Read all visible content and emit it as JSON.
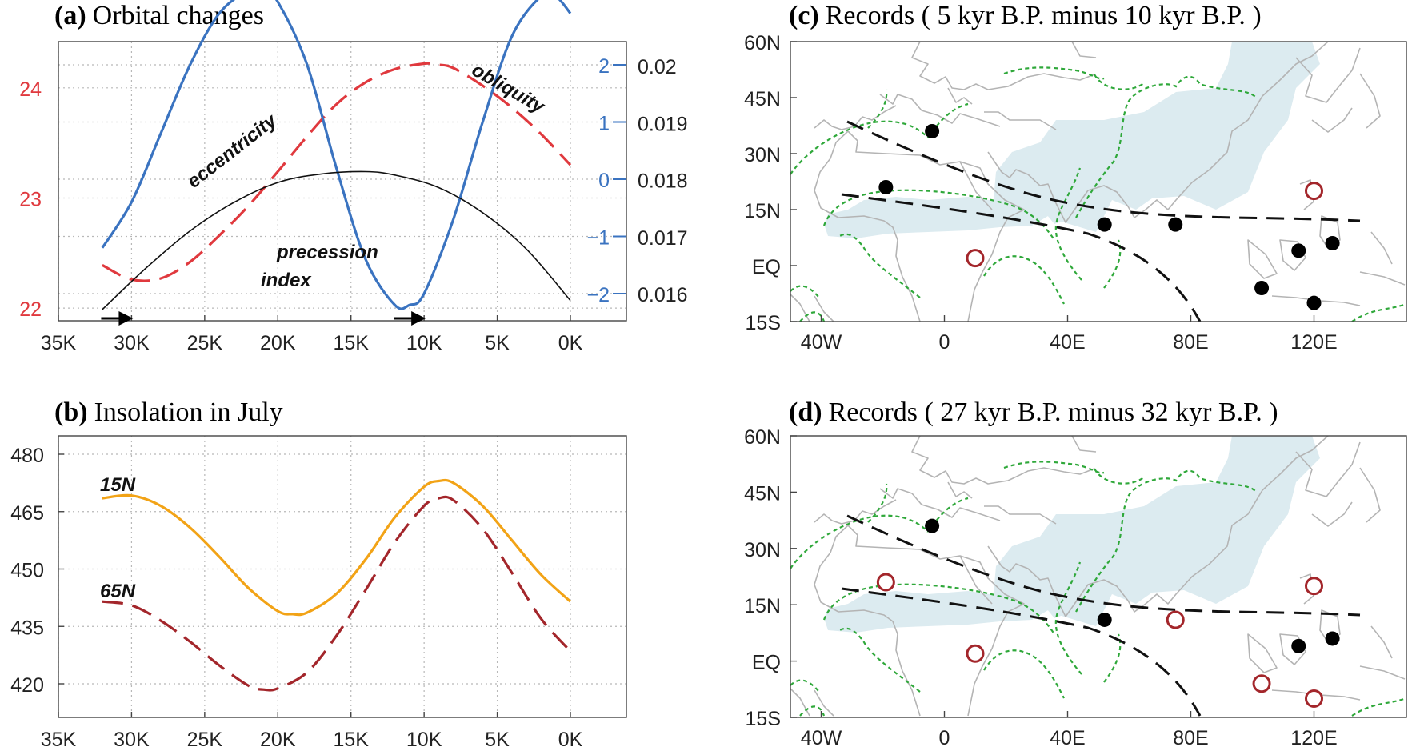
{
  "chart_data": [
    {
      "panel": "a",
      "type": "line",
      "title_letter": "(a)",
      "title": "Orbital changes",
      "x_ticks": [
        "35K",
        "30K",
        "25K",
        "20K",
        "15K",
        "10K",
        "5K",
        "0K"
      ],
      "x_ticks_values": [
        35,
        30,
        25,
        20,
        15,
        10,
        5,
        0
      ],
      "xlim": [
        35,
        0
      ],
      "left_axis": {
        "ticks": [
          "24",
          "23",
          "22"
        ],
        "ticks_values": [
          24,
          23,
          22
        ],
        "ylim": [
          21.95,
          24.5
        ],
        "color": "#e0393e"
      },
      "right_axis_precession": {
        "ticks": [
          "−2",
          "−1",
          "0",
          "1",
          "2"
        ],
        "ticks_values": [
          -2,
          -1,
          0,
          1,
          2
        ],
        "color": "#3a73c0"
      },
      "right_axis_eccentricity": {
        "ticks": [
          "0.02",
          "0.019",
          "0.018",
          "0.017",
          "0.016"
        ],
        "ticks_values": [
          0.02,
          0.019,
          0.018,
          0.017,
          0.016
        ],
        "ylim": [
          0.0153,
          0.0212
        ]
      },
      "arrow_markers_x": [
        30,
        10
      ],
      "series": [
        {
          "name": "obliquity",
          "axis": "left",
          "color": "#e0393e",
          "style": "dashed",
          "x": [
            32,
            30,
            28,
            26,
            24,
            22,
            20,
            18,
            16,
            14,
            12,
            10,
            9,
            8,
            6,
            4,
            2,
            0
          ],
          "y": [
            22.39,
            22.26,
            22.27,
            22.42,
            22.66,
            22.93,
            23.24,
            23.56,
            23.85,
            24.05,
            24.17,
            24.22,
            24.21,
            24.18,
            24.02,
            23.82,
            23.58,
            23.3
          ]
        },
        {
          "name": "precession index",
          "axis": "right_precession",
          "color": "#3a73c0",
          "style": "solid",
          "x": [
            32,
            30,
            28,
            26,
            24,
            22,
            21,
            20,
            18,
            16,
            14,
            12,
            11,
            10,
            8,
            6,
            4,
            2,
            1,
            0
          ],
          "y": [
            -1.2,
            -0.4,
            0.8,
            2.0,
            2.9,
            3.3,
            3.3,
            3.1,
            2.0,
            0.2,
            -1.4,
            -2.2,
            -2.2,
            -2.0,
            -0.7,
            1.0,
            2.5,
            3.2,
            3.2,
            2.9
          ]
        },
        {
          "name": "eccentricity",
          "axis": "right_eccentricity",
          "color": "#111111",
          "style": "solid",
          "x": [
            32,
            29,
            26,
            23,
            20,
            17,
            14,
            12,
            9,
            6,
            3,
            0
          ],
          "y": [
            0.01572,
            0.01645,
            0.0171,
            0.0176,
            0.01795,
            0.0181,
            0.01814,
            0.01808,
            0.01786,
            0.01742,
            0.01678,
            0.01588
          ]
        }
      ],
      "annotations": [
        "obliquity",
        "eccentricity",
        "precession",
        "index"
      ],
      "grid": true
    },
    {
      "panel": "b",
      "type": "line",
      "title_letter": "(b)",
      "title": "Insolation in July",
      "x_ticks": [
        "35K",
        "30K",
        "25K",
        "20K",
        "15K",
        "10K",
        "5K",
        "0K"
      ],
      "x_ticks_values": [
        35,
        30,
        25,
        20,
        15,
        10,
        5,
        0
      ],
      "xlim": [
        35,
        0
      ],
      "y_ticks": [
        "480",
        "465",
        "450",
        "435",
        "420"
      ],
      "y_ticks_values": [
        480,
        465,
        450,
        435,
        420
      ],
      "ylim": [
        411,
        483
      ],
      "series": [
        {
          "name": "15N",
          "color": "#f2a316",
          "style": "solid",
          "x": [
            32,
            30,
            28,
            26,
            24,
            22,
            20,
            19,
            18,
            16,
            14,
            12,
            10,
            9,
            8,
            6,
            4,
            2,
            0
          ],
          "y": [
            468.5,
            469.2,
            466.5,
            460.8,
            453.2,
            445.0,
            439.0,
            438.2,
            438.6,
            443.5,
            452.5,
            463.5,
            471.5,
            473.0,
            472.5,
            466.5,
            457.5,
            448.5,
            441.5
          ]
        },
        {
          "name": "65N",
          "color": "#a3262b",
          "style": "dashed",
          "x": [
            32,
            30,
            28,
            26,
            24,
            22,
            21,
            20,
            18,
            16,
            14,
            12,
            10,
            9,
            8,
            6,
            4,
            2,
            0
          ],
          "y": [
            441.5,
            440.5,
            436.5,
            431.0,
            424.8,
            419.5,
            418.5,
            418.8,
            423.0,
            432.5,
            444.5,
            457.0,
            466.5,
            468.5,
            468.0,
            460.5,
            449.0,
            437.0,
            428.5
          ]
        }
      ],
      "annotations": [
        "15N",
        "65N"
      ],
      "grid": true
    },
    {
      "panel": "c",
      "type": "map",
      "title_letter": "(c)",
      "title": "Records ( 5 kyr B.P. minus 10 kyr B.P. )",
      "lat_ticks": [
        "60N",
        "45N",
        "30N",
        "15N",
        "EQ",
        "15S"
      ],
      "lat_values": [
        60,
        45,
        30,
        15,
        0,
        -15
      ],
      "lon_ticks": [
        "40W",
        "0",
        "40E",
        "80E",
        "120E"
      ],
      "lon_values": [
        -40,
        0,
        40,
        80,
        120
      ],
      "lon_range": [
        -50,
        150
      ],
      "lat_range": [
        -15,
        60
      ],
      "filled_points": [
        [
          -4,
          36
        ],
        [
          -19,
          21
        ],
        [
          52,
          11
        ],
        [
          75,
          11
        ],
        [
          115,
          4
        ],
        [
          126,
          6
        ],
        [
          103,
          -6
        ],
        [
          120,
          -10
        ]
      ],
      "open_points": [
        [
          10,
          2
        ],
        [
          120,
          20
        ]
      ]
    },
    {
      "panel": "d",
      "type": "map",
      "title_letter": "(d)",
      "title": "Records ( 27 kyr B.P. minus 32 kyr B.P. )",
      "lat_ticks": [
        "60N",
        "45N",
        "30N",
        "15N",
        "EQ",
        "15S"
      ],
      "lat_values": [
        60,
        45,
        30,
        15,
        0,
        -15
      ],
      "lon_ticks": [
        "40W",
        "0",
        "40E",
        "80E",
        "120E"
      ],
      "lon_values": [
        -40,
        0,
        40,
        80,
        120
      ],
      "lon_range": [
        -50,
        150
      ],
      "lat_range": [
        -15,
        60
      ],
      "filled_points": [
        [
          -4,
          36
        ],
        [
          52,
          11
        ],
        [
          115,
          4
        ],
        [
          126,
          6
        ]
      ],
      "open_points": [
        [
          -19,
          21
        ],
        [
          10,
          2
        ],
        [
          75,
          11
        ],
        [
          120,
          20
        ],
        [
          103,
          -6
        ],
        [
          120,
          -10
        ]
      ]
    }
  ],
  "colors": {
    "obliquity": "#e0393e",
    "precession": "#3a73c0",
    "eccentricity": "#111111",
    "insolation_15N": "#f2a316",
    "insolation_65N": "#a3262b",
    "record_open": "#a3262b",
    "record_filled": "#000000",
    "monsoon_shading": "#dcebf0",
    "contour": "#2fa83a",
    "coast": "#b4b4b4"
  }
}
